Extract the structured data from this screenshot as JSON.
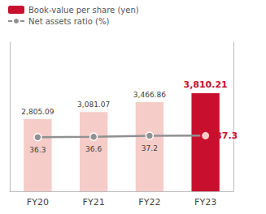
{
  "chart_data": {
    "type": "bar",
    "categories": [
      "FY20",
      "FY21",
      "FY22",
      "FY23"
    ],
    "series": [
      {
        "name": "Book-value per share (yen)",
        "type": "bar",
        "colors": [
          "#f5ccc8",
          "#f5ccc8",
          "#f5ccc8",
          "#c8102e"
        ],
        "values": [
          2805.09,
          3081.07,
          3466.86,
          3810.21
        ],
        "value_labels": [
          "2,805.09",
          "3,081.07",
          "3,466.86",
          "3,810.21"
        ]
      },
      {
        "name": "Net assets ratio (%)",
        "type": "line",
        "axis": "y2",
        "color": "#909090",
        "marker": "circle",
        "values": [
          36.3,
          36.6,
          37.2,
          37.3
        ]
      }
    ],
    "ylim": [
      0,
      5800
    ],
    "y2lim": [
      0,
      100
    ],
    "data_labels": true,
    "tick_labels": "x",
    "grid": false,
    "legend": "upper left"
  }
}
